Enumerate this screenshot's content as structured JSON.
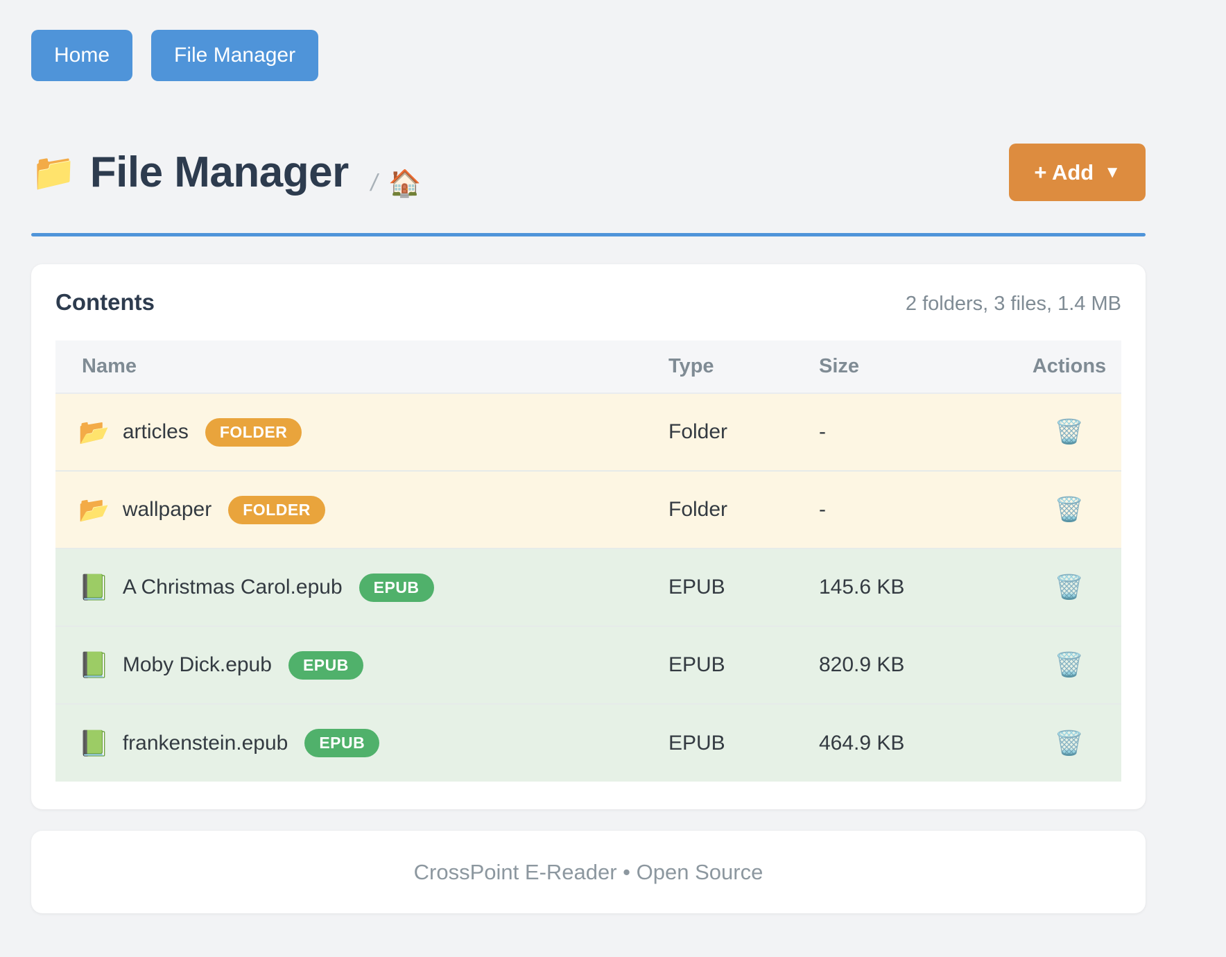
{
  "colors": {
    "page_bg": "#f2f3f5",
    "card_bg": "#ffffff",
    "blue": "#4f94d9",
    "orange": "#dd8c3f",
    "badge_folder": "#e9a43c",
    "badge_epub": "#50b16b",
    "row_folder_bg": "#fdf6e3",
    "row_epub_bg": "#e6f1e6",
    "thead_bg": "#f5f6f8",
    "heading": "#2d3b4e",
    "text_dark": "#333a41",
    "text_muted": "#7f8b94",
    "footer_text": "#8c979f",
    "divider": "#e6ebe9"
  },
  "nav": {
    "home_label": "Home",
    "file_manager_label": "File Manager"
  },
  "header": {
    "icon": "📁",
    "title": "File Manager",
    "breadcrumb_separator": "/",
    "breadcrumb_home_icon": "🏠",
    "add_button": {
      "label": "+ Add",
      "caret": "▼"
    }
  },
  "contents": {
    "heading": "Contents",
    "summary": "2 folders, 3 files, 1.4 MB",
    "table": {
      "columns": [
        "Name",
        "Type",
        "Size",
        "Actions"
      ],
      "rows": [
        {
          "icon": "📂",
          "name": "articles",
          "badge": "FOLDER",
          "type": "Folder",
          "size": "-",
          "action_icon": "🗑️"
        },
        {
          "icon": "📂",
          "name": "wallpaper",
          "badge": "FOLDER",
          "type": "Folder",
          "size": "-",
          "action_icon": "🗑️"
        },
        {
          "icon": "📗",
          "name": "A Christmas Carol.epub",
          "badge": "EPUB",
          "type": "EPUB",
          "size": "145.6 KB",
          "action_icon": "🗑️"
        },
        {
          "icon": "📗",
          "name": "Moby Dick.epub",
          "badge": "EPUB",
          "type": "EPUB",
          "size": "820.9 KB",
          "action_icon": "🗑️"
        },
        {
          "icon": "📗",
          "name": "frankenstein.epub",
          "badge": "EPUB",
          "type": "EPUB",
          "size": "464.9 KB",
          "action_icon": "🗑️"
        }
      ]
    }
  },
  "footer": {
    "text": "CrossPoint E-Reader • Open Source"
  }
}
